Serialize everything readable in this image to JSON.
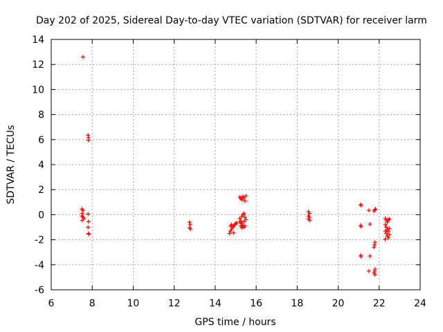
{
  "chart_data": {
    "type": "scatter",
    "title": "Day 202 of 2025, Sidereal Day-to-day VTEC variation (SDTVAR) for receiver larm",
    "xlabel": "GPS time / hours",
    "ylabel": "SDTVAR / TECUs",
    "xlim": [
      6,
      24
    ],
    "ylim": [
      -6,
      14
    ],
    "xticks": [
      6,
      8,
      10,
      12,
      14,
      16,
      18,
      20,
      22,
      24
    ],
    "yticks": [
      -6,
      -4,
      -2,
      0,
      2,
      4,
      6,
      8,
      10,
      12,
      14
    ],
    "grid": true,
    "marker": "+",
    "color": "#ff0000",
    "series": [
      {
        "name": "SDTVAR",
        "points": [
          [
            7.55,
            12.6
          ],
          [
            7.8,
            6.35
          ],
          [
            7.82,
            6.15
          ],
          [
            7.82,
            5.95
          ],
          [
            7.5,
            0.45
          ],
          [
            7.55,
            0.35
          ],
          [
            7.52,
            0.1
          ],
          [
            7.5,
            -0.1
          ],
          [
            7.55,
            -0.2
          ],
          [
            7.6,
            -0.3
          ],
          [
            7.52,
            -0.45
          ],
          [
            7.8,
            0.05
          ],
          [
            7.82,
            -0.55
          ],
          [
            7.8,
            -1.0
          ],
          [
            7.82,
            -1.5
          ],
          [
            7.84,
            -1.55
          ],
          [
            12.75,
            -0.6
          ],
          [
            12.78,
            -0.8
          ],
          [
            12.75,
            -1.05
          ],
          [
            12.8,
            -1.15
          ],
          [
            14.7,
            -1.5
          ],
          [
            14.75,
            -1.3
          ],
          [
            14.8,
            -1.15
          ],
          [
            14.85,
            -1.0
          ],
          [
            14.9,
            -0.9
          ],
          [
            14.95,
            -0.8
          ],
          [
            15.0,
            -0.7
          ],
          [
            15.05,
            -0.65
          ],
          [
            14.75,
            -0.9
          ],
          [
            14.8,
            -0.8
          ],
          [
            14.9,
            -1.45
          ],
          [
            15.2,
            -0.3
          ],
          [
            15.25,
            -0.5
          ],
          [
            15.3,
            -0.7
          ],
          [
            15.35,
            -0.85
          ],
          [
            15.4,
            -1.0
          ],
          [
            15.45,
            -0.9
          ],
          [
            15.3,
            -0.15
          ],
          [
            15.35,
            0.0
          ],
          [
            15.4,
            0.1
          ],
          [
            15.45,
            -0.2
          ],
          [
            15.5,
            -0.4
          ],
          [
            15.3,
            -1.05
          ],
          [
            15.2,
            -0.6
          ],
          [
            15.25,
            -0.9
          ],
          [
            15.4,
            -0.55
          ],
          [
            15.2,
            1.4
          ],
          [
            15.25,
            1.3
          ],
          [
            15.3,
            1.2
          ],
          [
            15.4,
            1.35
          ],
          [
            15.45,
            1.1
          ],
          [
            15.5,
            1.5
          ],
          [
            15.35,
            1.45
          ],
          [
            18.55,
            0.25
          ],
          [
            18.6,
            0.1
          ],
          [
            18.55,
            -0.1
          ],
          [
            18.6,
            -0.2
          ],
          [
            18.55,
            -0.35
          ],
          [
            18.62,
            -0.45
          ],
          [
            21.1,
            0.8
          ],
          [
            21.12,
            0.75
          ],
          [
            21.1,
            -0.85
          ],
          [
            21.12,
            -0.95
          ],
          [
            21.1,
            -3.25
          ],
          [
            21.12,
            -3.35
          ],
          [
            21.5,
            0.35
          ],
          [
            21.55,
            -0.75
          ],
          [
            21.55,
            -3.3
          ],
          [
            21.5,
            -4.5
          ],
          [
            21.75,
            0.3
          ],
          [
            21.8,
            0.4
          ],
          [
            21.82,
            0.45
          ],
          [
            21.8,
            -2.2
          ],
          [
            21.78,
            -2.4
          ],
          [
            21.75,
            -2.6
          ],
          [
            21.8,
            -4.35
          ],
          [
            21.78,
            -4.5
          ],
          [
            21.75,
            -4.65
          ],
          [
            21.8,
            -4.8
          ],
          [
            22.3,
            -0.3
          ],
          [
            22.35,
            -0.45
          ],
          [
            22.45,
            -0.4
          ],
          [
            22.5,
            -0.35
          ],
          [
            22.3,
            -0.8
          ],
          [
            22.35,
            -1.0
          ],
          [
            22.4,
            -1.2
          ],
          [
            22.45,
            -1.35
          ],
          [
            22.5,
            -1.1
          ],
          [
            22.35,
            -1.5
          ],
          [
            22.4,
            -1.7
          ],
          [
            22.45,
            -1.85
          ],
          [
            22.3,
            -1.95
          ],
          [
            22.5,
            -1.6
          ],
          [
            22.4,
            -0.6
          ],
          [
            22.3,
            -1.3
          ]
        ]
      }
    ]
  }
}
